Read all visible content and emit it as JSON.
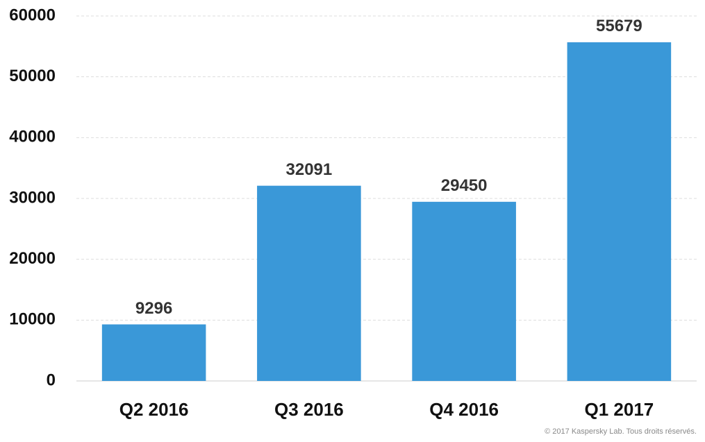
{
  "chart_data": {
    "type": "bar",
    "categories": [
      "Q2 2016",
      "Q3 2016",
      "Q4 2016",
      "Q1 2017"
    ],
    "values": [
      9296,
      32091,
      29450,
      55679
    ],
    "color": "#3a98d8",
    "ylim": [
      0,
      60000
    ],
    "yticks": [
      0,
      10000,
      20000,
      30000,
      40000,
      50000,
      60000
    ],
    "grid": true,
    "footnote": "© 2017 Kaspersky Lab. Tous droits réservés."
  }
}
